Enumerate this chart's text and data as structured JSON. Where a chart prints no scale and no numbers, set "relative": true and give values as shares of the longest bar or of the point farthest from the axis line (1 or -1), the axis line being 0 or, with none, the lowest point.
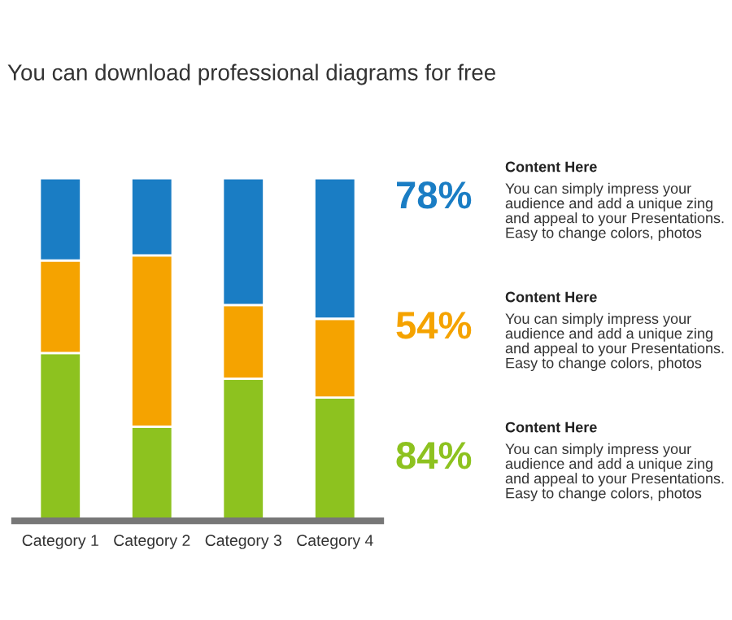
{
  "chart_data": {
    "type": "bar",
    "stacked": true,
    "relative": true,
    "subtitle": "You can download professional diagrams for free",
    "categories": [
      "Category 1",
      "Category 2",
      "Category 3",
      "Category 4"
    ],
    "series": [
      {
        "color": "#8dc21f",
        "values": [
          0.49,
          0.275,
          0.415,
          0.36
        ]
      },
      {
        "color": "#f5a300",
        "values": [
          0.27,
          0.5,
          0.215,
          0.23
        ]
      },
      {
        "color": "#1a7dc4",
        "values": [
          0.24,
          0.225,
          0.37,
          0.41
        ]
      }
    ],
    "annotations": [
      "78%",
      "Content Here",
      "You can simply impress your audience and add a unique zing and appeal to your Presentations. Easy to change colors, photos",
      "54%",
      "Content Here",
      "You can simply impress your audience and add a unique zing and appeal to your Presentations. Easy to change colors, photos",
      "84%",
      "Content Here",
      "You can simply impress your audience and add a unique zing and appeal to your Presentations. Easy to change colors, photos"
    ]
  }
}
